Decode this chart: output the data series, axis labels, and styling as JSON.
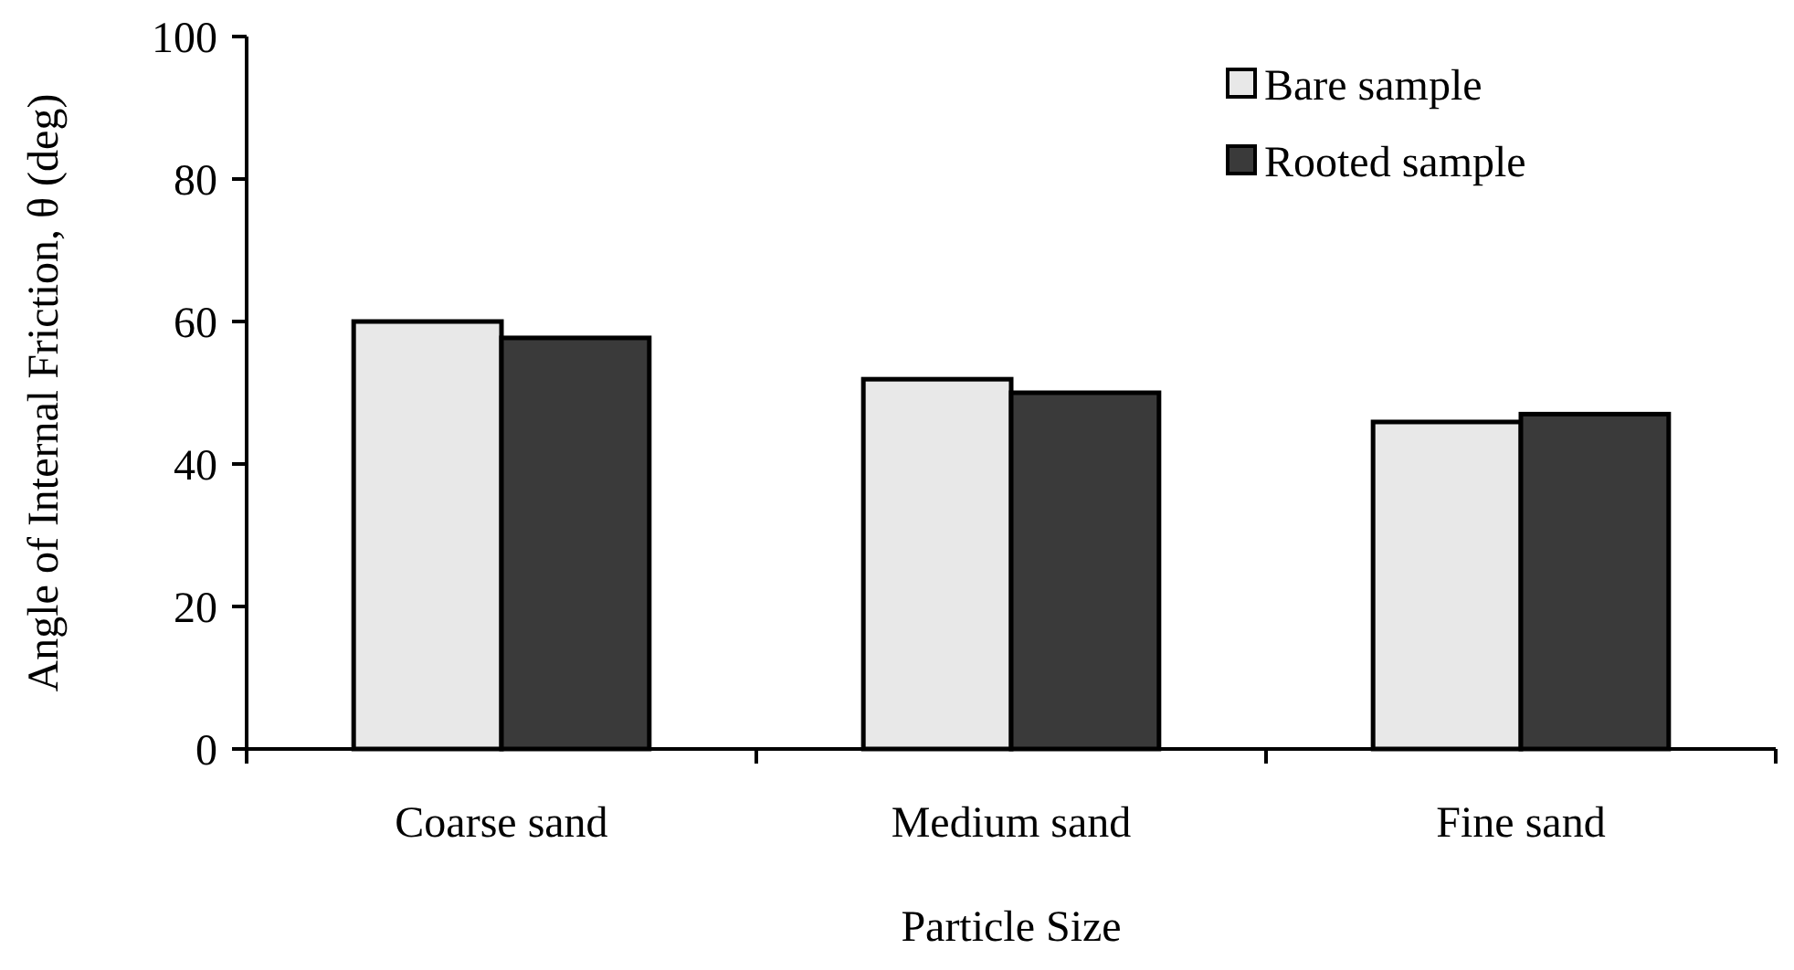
{
  "chart_data": {
    "type": "bar",
    "xlabel": "Particle Size",
    "ylabel": "Angle of Internal Friction, θ (deg)",
    "categories": [
      "Coarse sand",
      "Medium sand",
      "Fine sand"
    ],
    "series": [
      {
        "name": "Bare sample",
        "color": "#e8e8e8",
        "values": [
          60,
          51.9,
          45.9
        ]
      },
      {
        "name": "Rooted sample",
        "color": "#3a3a3a",
        "values": [
          57.7,
          50,
          47
        ]
      }
    ],
    "ylim": [
      0,
      100
    ],
    "yticks": [
      0,
      20,
      40,
      60,
      80,
      100
    ],
    "legend": "top right"
  }
}
